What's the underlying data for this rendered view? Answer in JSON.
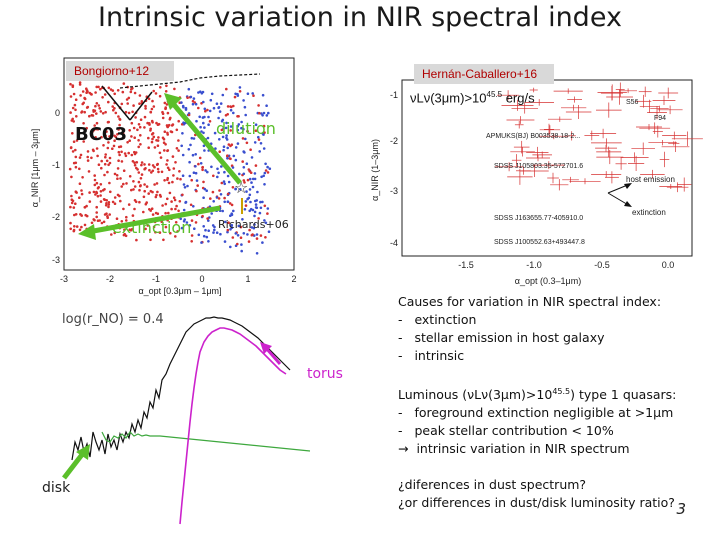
{
  "slide": {
    "title": "Intrinsic variation in NIR spectral index",
    "page_number": "3"
  },
  "left_plot": {
    "ref_label": "Bongiorno+12",
    "bc03_label": "BC03",
    "dilution_label": "dilution",
    "extinction_label": "extinction",
    "richards_label": "Richards+06",
    "y_axis_label": "α_NIR [1μm – 3μm]",
    "x_axis_label": "α_opt [0.3μm – 1μm]",
    "x_ticks": [
      "-3",
      "-2",
      "-1",
      "0",
      "1",
      "2"
    ],
    "y_ticks": [
      "0",
      "-1",
      "-2",
      "-3"
    ]
  },
  "right_plot": {
    "ref_label": "Hernán-Caballero+16",
    "lum_label": "νLν(3μm)>10",
    "lum_exp": "45.5",
    "lum_unit": " erg/s",
    "y_axis_label": "α_NIR (1–3μm)",
    "x_axis_label": "α_opt (0.3–1μm)",
    "x_ticks": [
      "-1.5",
      "-1.0",
      "-0.5",
      "0.0"
    ],
    "y_ticks": [
      "-1",
      "-2",
      "-3",
      "-4"
    ],
    "object_labels": [
      "APMUKS(BJ) B003538.18-2...",
      "SDSS J105803.35-572701.6",
      "SDSS J163655.77-405910.0",
      "SDSS J100552.63+493447.8",
      "S56",
      "F94"
    ],
    "host_emission_label": "host emission",
    "extinction_label": "extinction"
  },
  "spectrum_panel": {
    "log_label": "log(r_NO) = 0.4",
    "torus_label": "torus",
    "disk_label": "disk"
  },
  "text_block": {
    "causes_title": "Causes for variation in NIR spectral index:",
    "causes": [
      "extinction",
      "stellar emission in host galaxy",
      "intrinsic"
    ],
    "luminous_pre": "Luminous (νLν(3μm)>10",
    "luminous_exp": "45.5",
    "luminous_post": ") type 1 quasars:",
    "luminous_points": [
      "foreground extinction negligible at >1μm",
      "peak stellar contribution < 10%"
    ],
    "conclusion": "intrinsic variation in NIR spectrum",
    "question1": "¿diferences in dust spectrum?",
    "question2": "¿or differences in dust/disk luminosity ratio?"
  },
  "colors": {
    "accent_green": "#5bbf2a",
    "torus_magenta": "#cc22cc",
    "red_points": "#d63030",
    "blue_points": "#3a4fcf"
  }
}
